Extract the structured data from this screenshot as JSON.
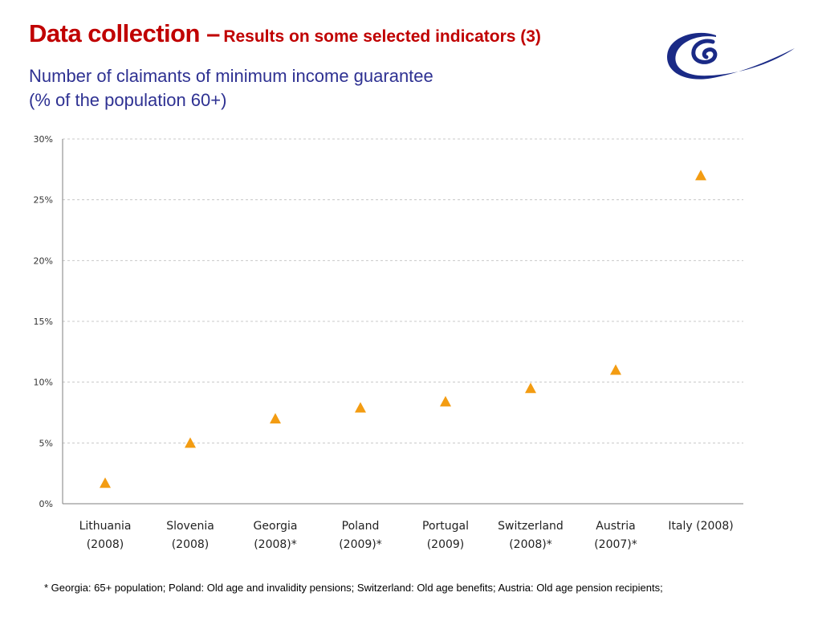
{
  "slide": {
    "title_main": "Data collection –",
    "title_sub": "Results on some  selected indicators (3)",
    "subtitle_line1": "Number of claimants  of minimum income guarantee",
    "subtitle_line2": "(% of the population 60+)",
    "footnote": "* Georgia: 65+ population; Poland: Old age and invalidity pensions; Switzerland: Old age benefits; Austria: Old age pension recipients;"
  },
  "logo": {
    "icon": "council-of-europe-swirl-logo",
    "color": "#1a2a86"
  },
  "colors": {
    "title": "#c00000",
    "subtitle": "#2e3192",
    "marker": "#f39c12",
    "gridline": "#c8c8c8"
  },
  "chart_data": {
    "type": "scatter",
    "marker": "triangle",
    "title": "",
    "xlabel": "",
    "ylabel": "",
    "categories": [
      [
        "Lithuania",
        "(2008)"
      ],
      [
        "Slovenia",
        "(2008)"
      ],
      [
        "Georgia",
        "(2008)*"
      ],
      [
        "Poland",
        "(2009)*"
      ],
      [
        "Portugal",
        "(2009)"
      ],
      [
        "Switzerland",
        "(2008)*"
      ],
      [
        "Austria",
        "(2007)*"
      ],
      [
        "Italy (2008)",
        ""
      ]
    ],
    "values": [
      1.7,
      5.0,
      7.0,
      7.9,
      8.4,
      9.5,
      11.0,
      27.0
    ],
    "ylim": [
      0,
      30
    ],
    "yticks": [
      0,
      5,
      10,
      15,
      20,
      25,
      30
    ],
    "ytick_labels": [
      "0%",
      "5%",
      "10%",
      "15%",
      "20%",
      "25%",
      "30%"
    ],
    "grid": "horizontal-dashed",
    "legend": "none"
  }
}
